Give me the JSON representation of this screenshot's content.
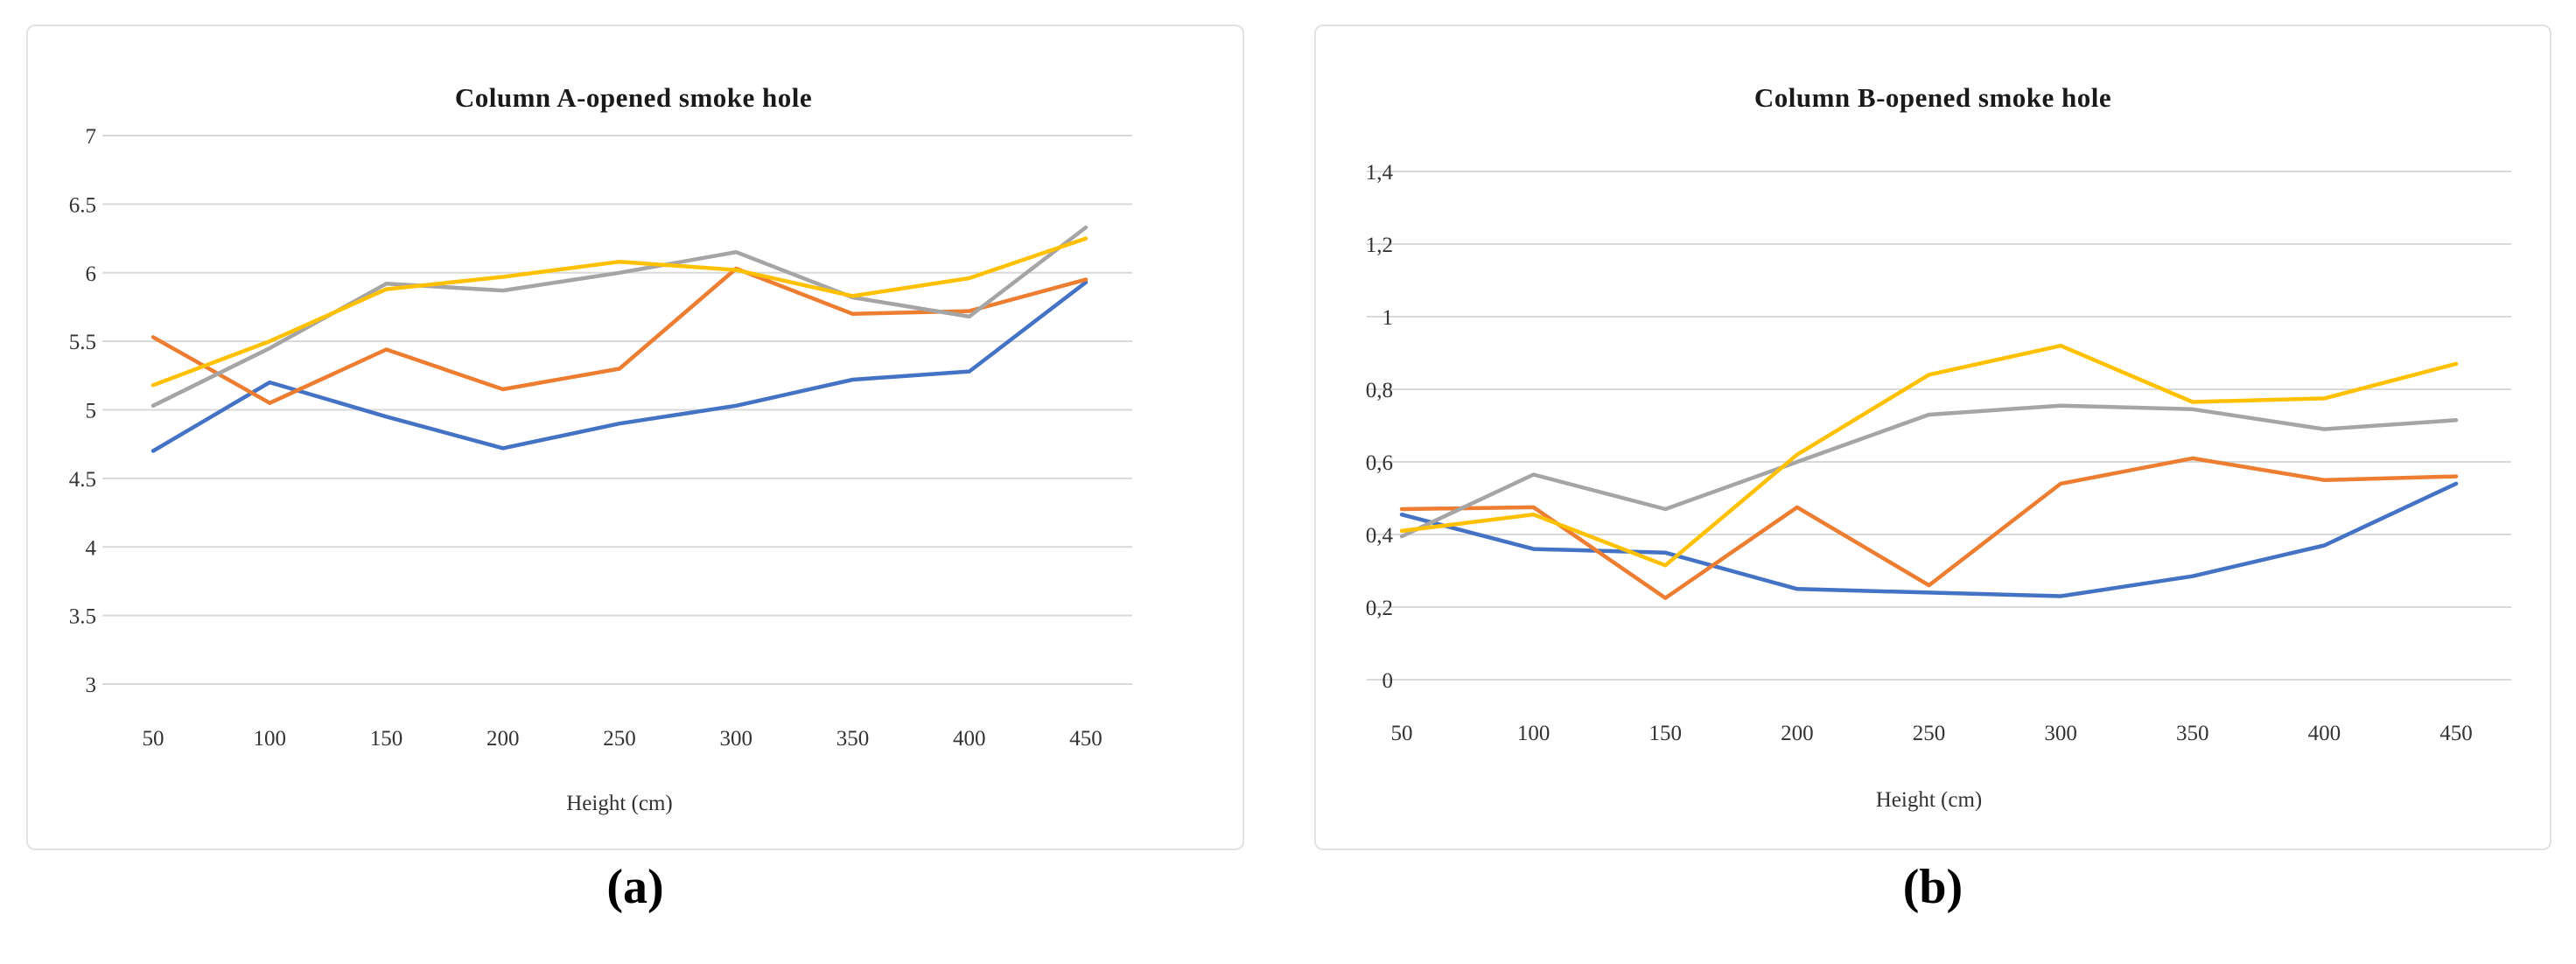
{
  "figure": {
    "captions": {
      "a": "(a)",
      "b": "(b)"
    }
  },
  "chart_data": [
    {
      "type": "line",
      "panel": "a",
      "title": "Column A-opened smoke hole",
      "xlabel": "Height (cm)",
      "x": [
        50,
        100,
        150,
        200,
        250,
        300,
        350,
        400,
        450
      ],
      "x_tick_labels": [
        "50",
        "100",
        "150",
        "200",
        "250",
        "300",
        "350",
        "400",
        "450"
      ],
      "ylim": [
        3,
        7
      ],
      "ystep": 0.5,
      "grid": true,
      "legend": "none",
      "y_ticks": [
        {
          "value": 7,
          "label": "7"
        },
        {
          "value": 6.5,
          "label": "6.5"
        },
        {
          "value": 6,
          "label": "6"
        },
        {
          "value": 5.5,
          "label": "5.5"
        },
        {
          "value": 5,
          "label": "5"
        },
        {
          "value": 4.5,
          "label": "4.5"
        },
        {
          "value": 4,
          "label": "4"
        },
        {
          "value": 3.5,
          "label": "3.5"
        },
        {
          "value": 3,
          "label": "3"
        }
      ],
      "series": [
        {
          "name": "blue",
          "color": "#4472C4",
          "values": [
            4.7,
            5.2,
            4.95,
            4.72,
            4.9,
            5.03,
            5.22,
            5.28,
            5.93
          ]
        },
        {
          "name": "orange",
          "color": "#ED7D31",
          "values": [
            5.53,
            5.05,
            5.44,
            5.15,
            5.3,
            6.03,
            5.7,
            5.72,
            5.95
          ]
        },
        {
          "name": "gray",
          "color": "#A5A5A5",
          "values": [
            5.03,
            5.45,
            5.92,
            5.87,
            6.0,
            6.15,
            5.82,
            5.68,
            6.33
          ]
        },
        {
          "name": "yellow",
          "color": "#FFC000",
          "values": [
            5.18,
            5.5,
            5.88,
            5.97,
            6.08,
            6.02,
            5.83,
            5.96,
            6.25
          ]
        }
      ]
    },
    {
      "type": "line",
      "panel": "b",
      "title": "Column B-opened smoke hole",
      "xlabel": "Height (cm)",
      "x": [
        50,
        100,
        150,
        200,
        250,
        300,
        350,
        400,
        450
      ],
      "x_tick_labels": [
        "50",
        "100",
        "150",
        "200",
        "250",
        "300",
        "350",
        "400",
        "450"
      ],
      "ylim": [
        0,
        1.4
      ],
      "ystep": 0.2,
      "grid": true,
      "legend": "none",
      "y_ticks": [
        {
          "value": 1.4,
          "label": "1,4"
        },
        {
          "value": 1.2,
          "label": "1,2"
        },
        {
          "value": 1,
          "label": "1"
        },
        {
          "value": 0.8,
          "label": "0,8"
        },
        {
          "value": 0.6,
          "label": "0,6"
        },
        {
          "value": 0.4,
          "label": "0,4"
        },
        {
          "value": 0.2,
          "label": "0,2"
        },
        {
          "value": 0,
          "label": "0"
        }
      ],
      "series": [
        {
          "name": "blue",
          "color": "#4472C4",
          "values": [
            0.455,
            0.36,
            0.35,
            0.25,
            0.24,
            0.23,
            0.285,
            0.37,
            0.54
          ]
        },
        {
          "name": "orange",
          "color": "#ED7D31",
          "values": [
            0.47,
            0.475,
            0.225,
            0.475,
            0.26,
            0.54,
            0.61,
            0.55,
            0.56
          ]
        },
        {
          "name": "gray",
          "color": "#A5A5A5",
          "values": [
            0.395,
            0.565,
            0.47,
            0.6,
            0.73,
            0.755,
            0.745,
            0.69,
            0.715
          ]
        },
        {
          "name": "yellow",
          "color": "#FFC000",
          "values": [
            0.41,
            0.455,
            0.315,
            0.62,
            0.84,
            0.92,
            0.765,
            0.775,
            0.87
          ]
        }
      ]
    }
  ]
}
